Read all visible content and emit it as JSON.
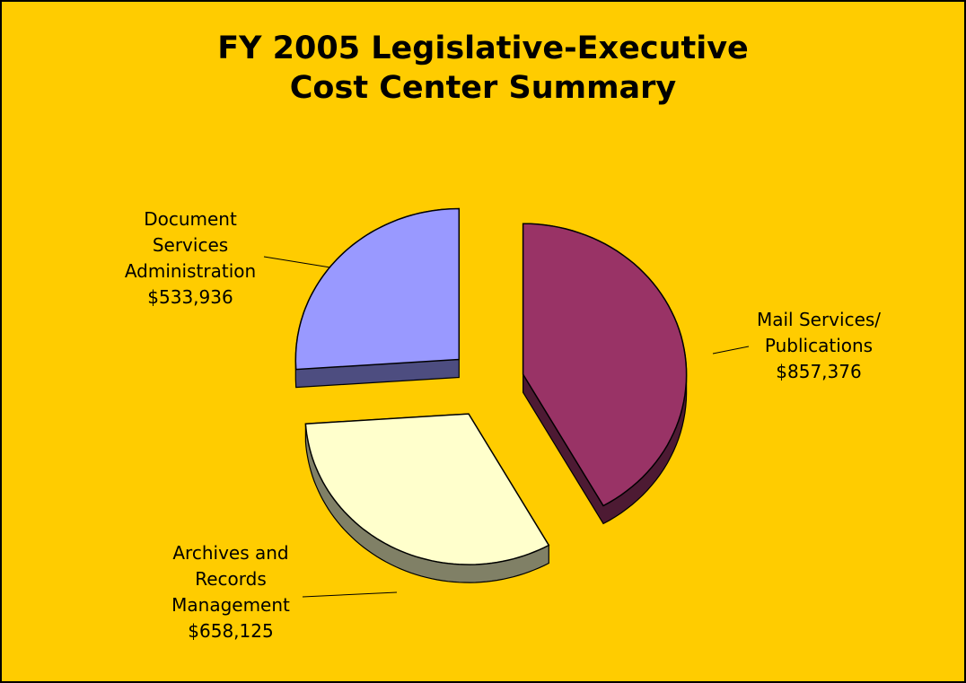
{
  "chart_data": {
    "type": "pie",
    "title": "FY 2005 Legislative-Executive\nCost Center Summary",
    "categories": [
      "Mail Services/\nPublications",
      "Archives and\nRecords\nManagement",
      "Document\nServices\nAdministration"
    ],
    "values": [
      857376,
      658125,
      533936
    ],
    "value_labels": [
      "$857,376",
      "$658,125",
      "$533,936"
    ],
    "colors": [
      "#993366",
      "#ffffcc",
      "#9999ff"
    ],
    "side_colors": [
      "#4d1a33",
      "#808066",
      "#4d4d80"
    ]
  }
}
